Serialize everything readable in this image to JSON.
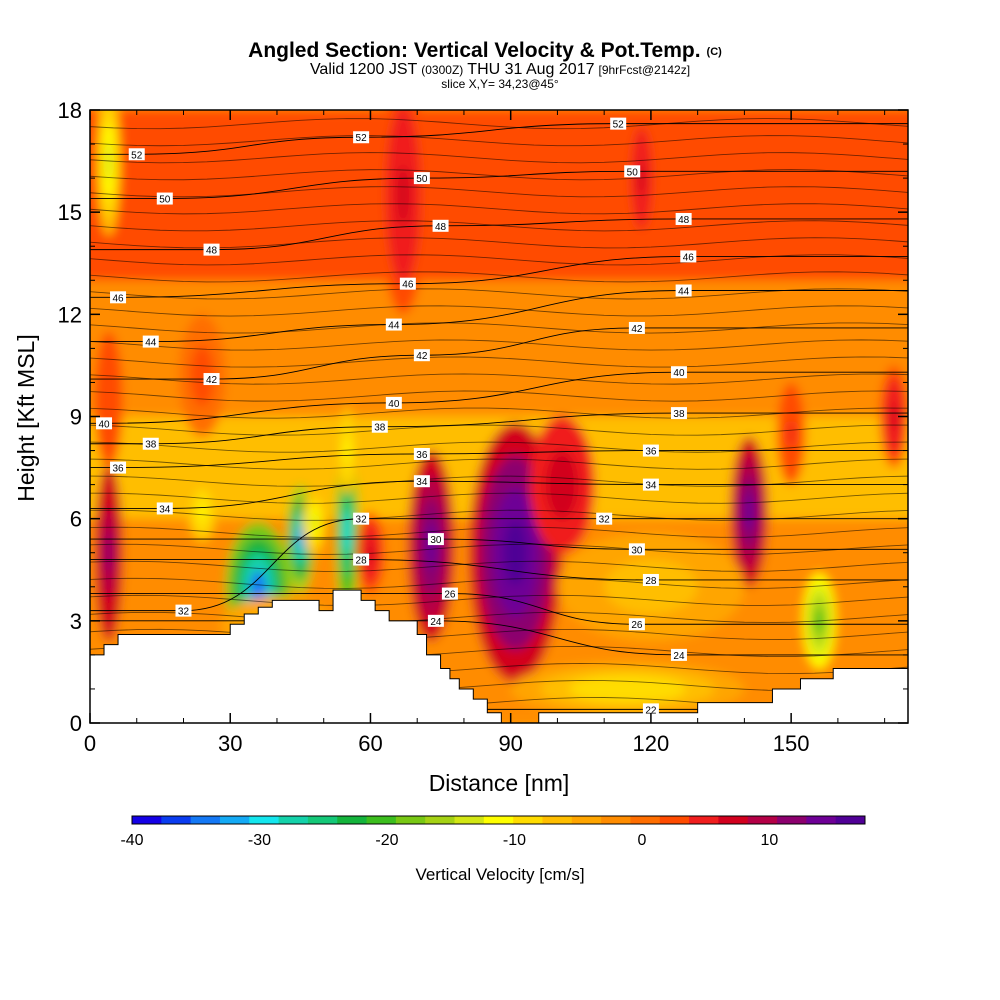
{
  "title": {
    "main": "Angled Section: Vertical Velocity & Pot.Temp.",
    "main_suffix": "(C)",
    "line2_a": "Valid 1200 JST",
    "line2_b": "(0300Z)",
    "line2_c": "THU 31 Aug 2017",
    "line2_d": "[9hrFcst@2142z]",
    "line3": "slice X,Y= 34,23@45°"
  },
  "colors": {
    "palette": [
      "#1400e6",
      "#0a3cf0",
      "#1478f5",
      "#14aaf5",
      "#14e6ee",
      "#14d2aa",
      "#14c878",
      "#14b43c",
      "#3cbe1e",
      "#78c814",
      "#a5d214",
      "#d2e614",
      "#ffff00",
      "#ffdc00",
      "#ffbe00",
      "#ffa500",
      "#ff8c00",
      "#ff6e00",
      "#ff4b00",
      "#f01e1e",
      "#d2001e",
      "#b40046",
      "#8c006e",
      "#6e0096",
      "#500096"
    ],
    "terrain": "#ffffff"
  },
  "chart_data": {
    "type": "heatmap",
    "xlabel": "Distance [nm]",
    "ylabel": "Height [Kft MSL]",
    "xlim": [
      0,
      175
    ],
    "ylim": [
      0,
      18
    ],
    "x_ticks": [
      0,
      30,
      60,
      90,
      120,
      150
    ],
    "y_ticks": [
      0,
      3,
      6,
      9,
      12,
      15,
      18
    ],
    "colorbar": {
      "title": "Vertical Velocity [cm/s]",
      "min": -40,
      "max": 17.5,
      "ticks": [
        -40,
        -30,
        -20,
        -10,
        0,
        10
      ]
    },
    "terrain_height_kft": [
      [
        0,
        2.0
      ],
      [
        3,
        2.0
      ],
      [
        3,
        2.3
      ],
      [
        6,
        2.3
      ],
      [
        6,
        2.6
      ],
      [
        30,
        2.6
      ],
      [
        30,
        2.9
      ],
      [
        33,
        2.9
      ],
      [
        33,
        3.2
      ],
      [
        36,
        3.2
      ],
      [
        36,
        3.4
      ],
      [
        39,
        3.4
      ],
      [
        39,
        3.6
      ],
      [
        49,
        3.6
      ],
      [
        49,
        3.3
      ],
      [
        52,
        3.3
      ],
      [
        52,
        3.9
      ],
      [
        58,
        3.9
      ],
      [
        58,
        3.6
      ],
      [
        61,
        3.6
      ],
      [
        61,
        3.3
      ],
      [
        64,
        3.3
      ],
      [
        64,
        3.0
      ],
      [
        70,
        3.0
      ],
      [
        70,
        2.6
      ],
      [
        72,
        2.6
      ],
      [
        72,
        2.0
      ],
      [
        75,
        2.0
      ],
      [
        75,
        1.6
      ],
      [
        77,
        1.6
      ],
      [
        77,
        1.3
      ],
      [
        79,
        1.3
      ],
      [
        79,
        1.0
      ],
      [
        82,
        1.0
      ],
      [
        82,
        0.7
      ],
      [
        85,
        0.7
      ],
      [
        85,
        0.3
      ],
      [
        88,
        0.3
      ],
      [
        88,
        0.0
      ],
      [
        96,
        0.0
      ],
      [
        96,
        0.3
      ],
      [
        130,
        0.3
      ],
      [
        130,
        0.6
      ],
      [
        146,
        0.6
      ],
      [
        146,
        1.0
      ],
      [
        152,
        1.0
      ],
      [
        152,
        1.3
      ],
      [
        159,
        1.3
      ],
      [
        159,
        1.6
      ],
      [
        175,
        1.6
      ]
    ],
    "vertical_velocity_features": [
      {
        "x": 4,
        "y": 5.0,
        "w": 3,
        "h": 2.6,
        "value": 12
      },
      {
        "x": 4,
        "y": 9.5,
        "w": 3,
        "h": 2.0,
        "value": 3
      },
      {
        "x": 4,
        "y": 16.5,
        "w": 2.5,
        "h": 2.2,
        "value": -14
      },
      {
        "x": 24,
        "y": 6.2,
        "w": 3,
        "h": 0.9,
        "value": -12
      },
      {
        "x": 24,
        "y": 10.2,
        "w": 5,
        "h": 1.8,
        "value": 2
      },
      {
        "x": 36,
        "y": 4.0,
        "w": 7,
        "h": 1.9,
        "value": -34
      },
      {
        "x": 45,
        "y": 5.4,
        "w": 3,
        "h": 1.6,
        "value": -32
      },
      {
        "x": 48,
        "y": 5.9,
        "w": 2.5,
        "h": 1.0,
        "value": -13
      },
      {
        "x": 55,
        "y": 5.6,
        "w": 2.5,
        "h": 2.6,
        "value": -30
      },
      {
        "x": 55,
        "y": 8.0,
        "w": 2.0,
        "h": 1.3,
        "value": -12
      },
      {
        "x": 60,
        "y": 5.0,
        "w": 3,
        "h": 1.2,
        "value": 6
      },
      {
        "x": 67,
        "y": 15.5,
        "w": 5,
        "h": 3.5,
        "value": 6
      },
      {
        "x": 73,
        "y": 5.2,
        "w": 5,
        "h": 2.8,
        "value": 15
      },
      {
        "x": 91,
        "y": 5.0,
        "w": 10,
        "h": 3.8,
        "value": 16
      },
      {
        "x": 101,
        "y": 7.0,
        "w": 7,
        "h": 2.0,
        "value": 8
      },
      {
        "x": 118,
        "y": 16.0,
        "w": 3,
        "h": 2.0,
        "value": 7
      },
      {
        "x": 141,
        "y": 6.2,
        "w": 4,
        "h": 2.2,
        "value": 14
      },
      {
        "x": 150,
        "y": 8.5,
        "w": 3,
        "h": 1.5,
        "value": 4
      },
      {
        "x": 156,
        "y": 3.0,
        "w": 3.5,
        "h": 1.4,
        "value": -20
      },
      {
        "x": 172,
        "y": 9.0,
        "w": 3,
        "h": 1.5,
        "value": 6
      },
      {
        "x": 120,
        "y": 4.0,
        "w": 20,
        "h": 1.6,
        "value": -7
      },
      {
        "x": 40,
        "y": 2.9,
        "w": 12,
        "h": 0.8,
        "value": -8
      },
      {
        "x": 115,
        "y": 1.0,
        "w": 25,
        "h": 0.8,
        "value": -10
      }
    ],
    "theta_contour_labels": [
      {
        "x": 10,
        "y": 16.7,
        "label": "52"
      },
      {
        "x": 58,
        "y": 17.2,
        "label": "52"
      },
      {
        "x": 113,
        "y": 17.6,
        "label": "52"
      },
      {
        "x": 16,
        "y": 15.4,
        "label": "50"
      },
      {
        "x": 71,
        "y": 16.0,
        "label": "50"
      },
      {
        "x": 116,
        "y": 16.2,
        "label": "50"
      },
      {
        "x": 26,
        "y": 13.9,
        "label": "48"
      },
      {
        "x": 75,
        "y": 14.6,
        "label": "48"
      },
      {
        "x": 127,
        "y": 14.8,
        "label": "48"
      },
      {
        "x": 6,
        "y": 12.5,
        "label": "46"
      },
      {
        "x": 68,
        "y": 12.9,
        "label": "46"
      },
      {
        "x": 128,
        "y": 13.7,
        "label": "46"
      },
      {
        "x": 13,
        "y": 11.2,
        "label": "44"
      },
      {
        "x": 65,
        "y": 11.7,
        "label": "44"
      },
      {
        "x": 127,
        "y": 12.7,
        "label": "44"
      },
      {
        "x": 26,
        "y": 10.1,
        "label": "42"
      },
      {
        "x": 71,
        "y": 10.8,
        "label": "42"
      },
      {
        "x": 117,
        "y": 11.6,
        "label": "42"
      },
      {
        "x": 3,
        "y": 8.8,
        "label": "40"
      },
      {
        "x": 65,
        "y": 9.4,
        "label": "40"
      },
      {
        "x": 126,
        "y": 10.3,
        "label": "40"
      },
      {
        "x": 13,
        "y": 8.2,
        "label": "38"
      },
      {
        "x": 62,
        "y": 8.7,
        "label": "38"
      },
      {
        "x": 126,
        "y": 9.1,
        "label": "38"
      },
      {
        "x": 6,
        "y": 7.5,
        "label": "36"
      },
      {
        "x": 71,
        "y": 7.9,
        "label": "36"
      },
      {
        "x": 120,
        "y": 8.0,
        "label": "36"
      },
      {
        "x": 16,
        "y": 6.3,
        "label": "34"
      },
      {
        "x": 71,
        "y": 7.1,
        "label": "34"
      },
      {
        "x": 120,
        "y": 7.0,
        "label": "34"
      },
      {
        "x": 58,
        "y": 6.0,
        "label": "32"
      },
      {
        "x": 110,
        "y": 6.0,
        "label": "32"
      },
      {
        "x": 20,
        "y": 3.3,
        "label": "32"
      },
      {
        "x": 74,
        "y": 5.4,
        "label": "30"
      },
      {
        "x": 117,
        "y": 5.1,
        "label": "30"
      },
      {
        "x": 58,
        "y": 4.8,
        "label": "28"
      },
      {
        "x": 120,
        "y": 4.2,
        "label": "28"
      },
      {
        "x": 77,
        "y": 3.8,
        "label": "26"
      },
      {
        "x": 117,
        "y": 2.9,
        "label": "26"
      },
      {
        "x": 74,
        "y": 3.0,
        "label": "24"
      },
      {
        "x": 126,
        "y": 2.0,
        "label": "24"
      },
      {
        "x": 120,
        "y": 0.4,
        "label": "22"
      }
    ]
  }
}
